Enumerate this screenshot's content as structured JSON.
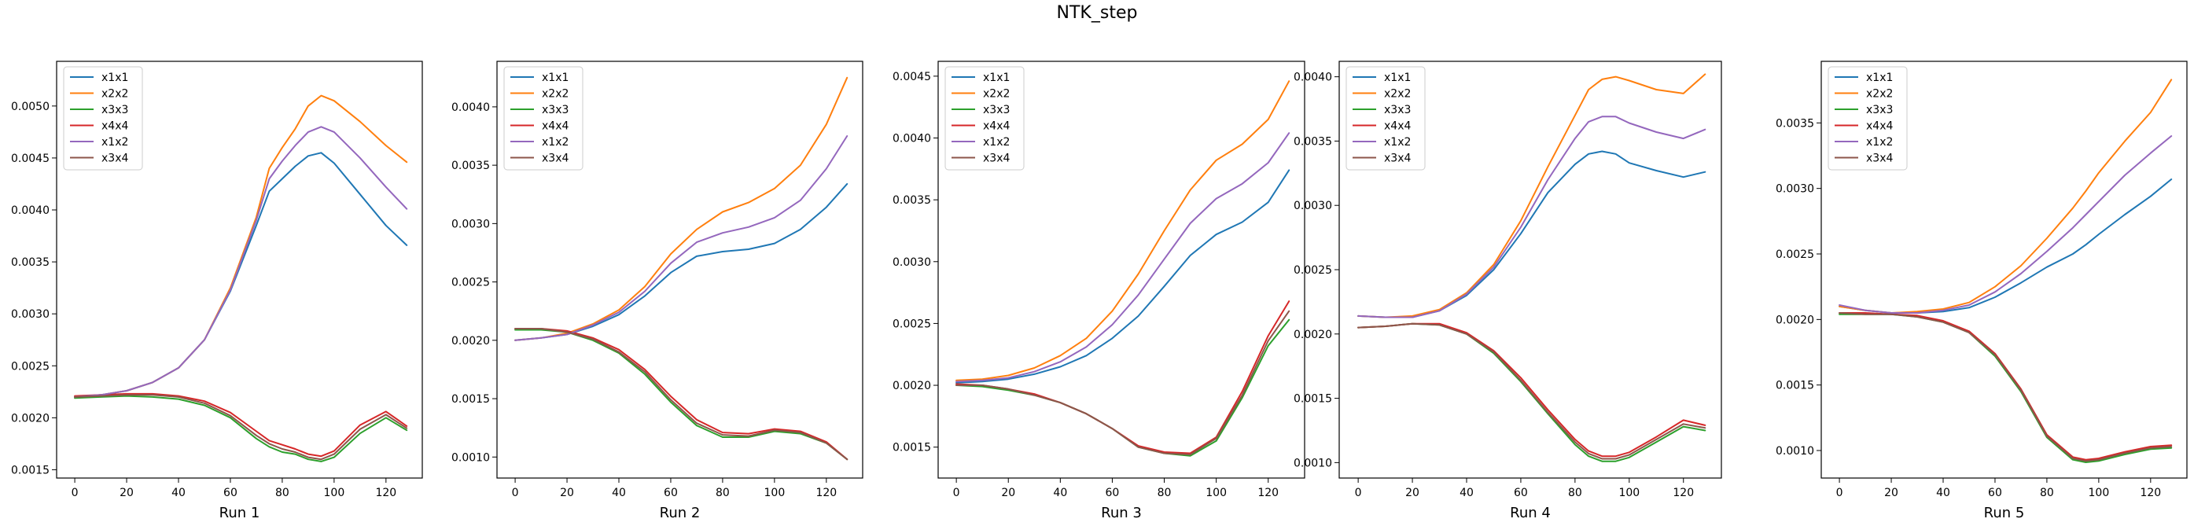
{
  "figure": {
    "suptitle": "NTK_step"
  },
  "series_colors": {
    "x1x1": "#1f77b4",
    "x2x2": "#ff7f0e",
    "x3x3": "#2ca02c",
    "x4x4": "#d62728",
    "x1x2": "#9467bd",
    "x3x4": "#8c564b"
  },
  "chart_data": [
    {
      "type": "line",
      "xlabel": "Run 1",
      "ylabel": "",
      "xlim": [
        -7,
        134
      ],
      "ylim": [
        0.00142,
        0.00543
      ],
      "xticks": [
        0,
        20,
        40,
        60,
        80,
        100,
        120
      ],
      "yticks": [
        0.0015,
        0.002,
        0.0025,
        0.003,
        0.0035,
        0.004,
        0.0045,
        0.005
      ],
      "ytick_labels": [
        "0.0015",
        "0.0020",
        "0.0025",
        "0.0030",
        "0.0035",
        "0.0040",
        "0.0045",
        "0.0050"
      ],
      "legend": "top-left",
      "grid": false,
      "x": [
        0,
        10,
        20,
        30,
        40,
        50,
        60,
        70,
        75,
        80,
        85,
        90,
        95,
        100,
        110,
        120,
        128
      ],
      "series": [
        {
          "name": "x1x1",
          "values": [
            0.0022,
            0.00222,
            0.00226,
            0.00234,
            0.00248,
            0.00275,
            0.00322,
            0.00385,
            0.00418,
            0.0043,
            0.00442,
            0.00452,
            0.00455,
            0.00445,
            0.00415,
            0.00385,
            0.00366
          ]
        },
        {
          "name": "x2x2",
          "values": [
            0.0022,
            0.00222,
            0.00226,
            0.00234,
            0.00248,
            0.00275,
            0.00325,
            0.00393,
            0.0044,
            0.0046,
            0.00478,
            0.005,
            0.0051,
            0.00505,
            0.00485,
            0.00462,
            0.00446
          ]
        },
        {
          "name": "x3x3",
          "values": [
            0.00219,
            0.0022,
            0.00221,
            0.0022,
            0.00218,
            0.00212,
            0.002,
            0.0018,
            0.00172,
            0.00167,
            0.00165,
            0.0016,
            0.00158,
            0.00162,
            0.00185,
            0.002,
            0.00188
          ]
        },
        {
          "name": "x4x4",
          "values": [
            0.00221,
            0.00222,
            0.00223,
            0.00223,
            0.00221,
            0.00216,
            0.00205,
            0.00187,
            0.00178,
            0.00174,
            0.0017,
            0.00165,
            0.00163,
            0.00168,
            0.00193,
            0.00206,
            0.00192
          ]
        },
        {
          "name": "x1x2",
          "values": [
            0.0022,
            0.00222,
            0.00226,
            0.00234,
            0.00248,
            0.00275,
            0.00323,
            0.0039,
            0.0043,
            0.00447,
            0.00462,
            0.00475,
            0.0048,
            0.00475,
            0.0045,
            0.00422,
            0.00401
          ]
        },
        {
          "name": "x3x4",
          "values": [
            0.0022,
            0.00221,
            0.00222,
            0.00222,
            0.0022,
            0.00214,
            0.00202,
            0.00183,
            0.00175,
            0.0017,
            0.00167,
            0.00162,
            0.0016,
            0.00165,
            0.00189,
            0.00203,
            0.0019
          ]
        }
      ]
    },
    {
      "type": "line",
      "xlabel": "Run 2",
      "ylabel": "",
      "xlim": [
        -7,
        134
      ],
      "ylim": [
        0.00082,
        0.00439
      ],
      "xticks": [
        0,
        20,
        40,
        60,
        80,
        100,
        120
      ],
      "yticks": [
        0.001,
        0.0015,
        0.002,
        0.0025,
        0.003,
        0.0035,
        0.004
      ],
      "ytick_labels": [
        "0.0010",
        "0.0015",
        "0.0020",
        "0.0025",
        "0.0030",
        "0.0035",
        "0.0040"
      ],
      "legend": "top-left",
      "grid": false,
      "x": [
        0,
        10,
        20,
        30,
        40,
        50,
        60,
        70,
        80,
        90,
        100,
        110,
        120,
        128
      ],
      "series": [
        {
          "name": "x1x1",
          "values": [
            0.002,
            0.00202,
            0.00205,
            0.00212,
            0.00222,
            0.00238,
            0.00258,
            0.00272,
            0.00276,
            0.00278,
            0.00283,
            0.00295,
            0.00314,
            0.00334
          ]
        },
        {
          "name": "x2x2",
          "values": [
            0.002,
            0.00202,
            0.00206,
            0.00214,
            0.00226,
            0.00246,
            0.00274,
            0.00295,
            0.0031,
            0.00318,
            0.0033,
            0.0035,
            0.00385,
            0.00425
          ]
        },
        {
          "name": "x3x3",
          "values": [
            0.00209,
            0.00209,
            0.00207,
            0.002,
            0.00189,
            0.00171,
            0.00147,
            0.00127,
            0.00117,
            0.00117,
            0.00122,
            0.0012,
            0.00112,
            0.00098
          ]
        },
        {
          "name": "x4x4",
          "values": [
            0.0021,
            0.0021,
            0.00208,
            0.00202,
            0.00192,
            0.00175,
            0.00152,
            0.00132,
            0.00121,
            0.0012,
            0.00124,
            0.00122,
            0.00113,
            0.00098
          ]
        },
        {
          "name": "x1x2",
          "values": [
            0.002,
            0.00202,
            0.00205,
            0.00213,
            0.00224,
            0.00242,
            0.00266,
            0.00284,
            0.00292,
            0.00297,
            0.00305,
            0.0032,
            0.00347,
            0.00375
          ]
        },
        {
          "name": "x3x4",
          "values": [
            0.0021,
            0.0021,
            0.00207,
            0.00201,
            0.0019,
            0.00173,
            0.00149,
            0.00129,
            0.00119,
            0.00118,
            0.00123,
            0.00121,
            0.00112,
            0.00098
          ]
        }
      ]
    },
    {
      "type": "line",
      "xlabel": "Run 3",
      "ylabel": "",
      "xlim": [
        -7,
        134
      ],
      "ylim": [
        0.00125,
        0.00462
      ],
      "xticks": [
        0,
        20,
        40,
        60,
        80,
        100,
        120
      ],
      "yticks": [
        0.0015,
        0.002,
        0.0025,
        0.003,
        0.0035,
        0.004,
        0.0045
      ],
      "ytick_labels": [
        "0.0015",
        "0.0020",
        "0.0025",
        "0.0030",
        "0.0035",
        "0.0040",
        "0.0045"
      ],
      "legend": "top-left",
      "grid": false,
      "x": [
        0,
        10,
        20,
        30,
        40,
        50,
        60,
        70,
        80,
        90,
        100,
        110,
        120,
        128
      ],
      "series": [
        {
          "name": "x1x1",
          "values": [
            0.00202,
            0.00203,
            0.00205,
            0.00209,
            0.00215,
            0.00224,
            0.00238,
            0.00256,
            0.0028,
            0.00305,
            0.00322,
            0.00332,
            0.00348,
            0.00374
          ]
        },
        {
          "name": "x2x2",
          "values": [
            0.00204,
            0.00205,
            0.00208,
            0.00214,
            0.00224,
            0.00238,
            0.0026,
            0.0029,
            0.00325,
            0.00358,
            0.00382,
            0.00395,
            0.00415,
            0.00446
          ]
        },
        {
          "name": "x3x3",
          "values": [
            0.002,
            0.00199,
            0.00196,
            0.00192,
            0.00186,
            0.00177,
            0.00165,
            0.0015,
            0.00145,
            0.00143,
            0.00155,
            0.0019,
            0.00232,
            0.00253
          ]
        },
        {
          "name": "x4x4",
          "values": [
            0.00201,
            0.002,
            0.00197,
            0.00193,
            0.00186,
            0.00177,
            0.00165,
            0.00151,
            0.00146,
            0.00145,
            0.00158,
            0.00195,
            0.0024,
            0.00268
          ]
        },
        {
          "name": "x1x2",
          "values": [
            0.00203,
            0.00204,
            0.00206,
            0.00211,
            0.00219,
            0.00231,
            0.00249,
            0.00273,
            0.00302,
            0.00331,
            0.00351,
            0.00363,
            0.0038,
            0.00404
          ]
        },
        {
          "name": "x3x4",
          "values": [
            0.002,
            0.002,
            0.00197,
            0.00192,
            0.00186,
            0.00177,
            0.00165,
            0.0015,
            0.00145,
            0.00144,
            0.00157,
            0.00192,
            0.00236,
            0.0026
          ]
        }
      ]
    },
    {
      "type": "line",
      "xlabel": "Run 4",
      "ylabel": "",
      "xlim": [
        -7,
        134
      ],
      "ylim": [
        0.00088,
        0.00412
      ],
      "xticks": [
        0,
        20,
        40,
        60,
        80,
        100,
        120
      ],
      "yticks": [
        0.001,
        0.0015,
        0.002,
        0.0025,
        0.003,
        0.0035,
        0.004
      ],
      "ytick_labels": [
        "0.0010",
        "0.0015",
        "0.0020",
        "0.0025",
        "0.0030",
        "0.0035",
        "0.0040"
      ],
      "legend": "top-left",
      "grid": false,
      "x": [
        0,
        10,
        20,
        30,
        40,
        50,
        60,
        70,
        80,
        85,
        90,
        95,
        100,
        110,
        120,
        128
      ],
      "series": [
        {
          "name": "x1x1",
          "values": [
            0.00214,
            0.00213,
            0.00213,
            0.00218,
            0.0023,
            0.0025,
            0.00278,
            0.0031,
            0.00332,
            0.0034,
            0.00342,
            0.0034,
            0.00333,
            0.00327,
            0.00322,
            0.00326
          ]
        },
        {
          "name": "x2x2",
          "values": [
            0.00214,
            0.00213,
            0.00214,
            0.00219,
            0.00232,
            0.00254,
            0.00288,
            0.0033,
            0.0037,
            0.0039,
            0.00398,
            0.004,
            0.00397,
            0.0039,
            0.00387,
            0.00402
          ]
        },
        {
          "name": "x3x3",
          "values": [
            0.00205,
            0.00206,
            0.00208,
            0.00207,
            0.002,
            0.00185,
            0.00163,
            0.00138,
            0.00114,
            0.00105,
            0.00101,
            0.00101,
            0.00104,
            0.00116,
            0.00128,
            0.00125
          ]
        },
        {
          "name": "x4x4",
          "values": [
            0.00205,
            0.00206,
            0.00208,
            0.00208,
            0.00201,
            0.00187,
            0.00166,
            0.00141,
            0.00118,
            0.00109,
            0.00105,
            0.00105,
            0.00108,
            0.0012,
            0.00133,
            0.00129
          ]
        },
        {
          "name": "x1x2",
          "values": [
            0.00214,
            0.00213,
            0.00213,
            0.00218,
            0.00231,
            0.00252,
            0.00283,
            0.0032,
            0.00352,
            0.00365,
            0.00369,
            0.00369,
            0.00364,
            0.00357,
            0.00352,
            0.00359
          ]
        },
        {
          "name": "x3x4",
          "values": [
            0.00205,
            0.00206,
            0.00208,
            0.00207,
            0.002,
            0.00186,
            0.00164,
            0.00139,
            0.00116,
            0.00107,
            0.00103,
            0.00103,
            0.00106,
            0.00118,
            0.0013,
            0.00127
          ]
        }
      ]
    },
    {
      "type": "line",
      "xlabel": "Run 5",
      "ylabel": "",
      "xlim": [
        -7,
        134
      ],
      "ylim": [
        0.00079,
        0.00397
      ],
      "xticks": [
        0,
        20,
        40,
        60,
        80,
        100,
        120
      ],
      "yticks": [
        0.001,
        0.0015,
        0.002,
        0.0025,
        0.003,
        0.0035
      ],
      "ytick_labels": [
        "0.0010",
        "0.0015",
        "0.0020",
        "0.0025",
        "0.0030",
        "0.0035"
      ],
      "legend": "top-left",
      "grid": false,
      "x": [
        0,
        10,
        20,
        30,
        40,
        50,
        60,
        70,
        80,
        90,
        95,
        100,
        110,
        120,
        128
      ],
      "series": [
        {
          "name": "x1x1",
          "values": [
            0.0021,
            0.00207,
            0.00205,
            0.00205,
            0.00206,
            0.00209,
            0.00217,
            0.00228,
            0.0024,
            0.0025,
            0.00257,
            0.00265,
            0.0028,
            0.00294,
            0.00307
          ]
        },
        {
          "name": "x2x2",
          "values": [
            0.0021,
            0.00207,
            0.00205,
            0.00206,
            0.00208,
            0.00213,
            0.00225,
            0.00241,
            0.00262,
            0.00285,
            0.00298,
            0.00312,
            0.00336,
            0.00358,
            0.00383
          ]
        },
        {
          "name": "x3x3",
          "values": [
            0.00204,
            0.00204,
            0.00204,
            0.00202,
            0.00198,
            0.0019,
            0.00172,
            0.00145,
            0.0011,
            0.00093,
            0.00091,
            0.00092,
            0.00097,
            0.00101,
            0.00102
          ]
        },
        {
          "name": "x4x4",
          "values": [
            0.00205,
            0.00205,
            0.00204,
            0.00203,
            0.00199,
            0.00191,
            0.00174,
            0.00147,
            0.00112,
            0.00095,
            0.00093,
            0.00094,
            0.00099,
            0.00103,
            0.00104
          ]
        },
        {
          "name": "x1x2",
          "values": [
            0.00211,
            0.00207,
            0.00205,
            0.00205,
            0.00207,
            0.00211,
            0.00221,
            0.00235,
            0.00252,
            0.0027,
            0.0028,
            0.0029,
            0.0031,
            0.00327,
            0.0034
          ]
        },
        {
          "name": "x3x4",
          "values": [
            0.00205,
            0.00204,
            0.00204,
            0.00202,
            0.00198,
            0.0019,
            0.00173,
            0.00146,
            0.00111,
            0.00094,
            0.00092,
            0.00093,
            0.00098,
            0.00102,
            0.00103
          ]
        }
      ]
    }
  ]
}
